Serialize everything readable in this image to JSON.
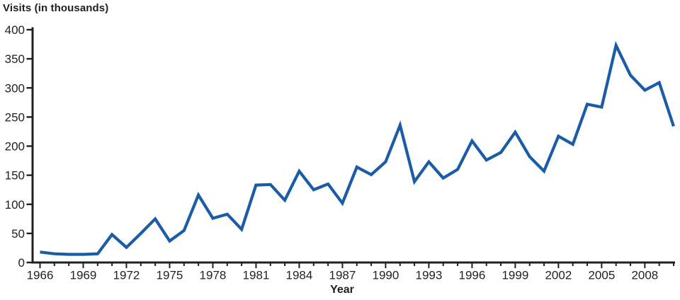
{
  "title": "Visits (in thousands)",
  "chart_data": {
    "type": "line",
    "title": "Visits (in thousands)",
    "xlabel": "Year",
    "ylabel": "Visits (in thousands)",
    "x": [
      1966,
      1967,
      1968,
      1969,
      1970,
      1971,
      1972,
      1973,
      1974,
      1975,
      1976,
      1977,
      1978,
      1979,
      1980,
      1981,
      1982,
      1983,
      1984,
      1985,
      1986,
      1987,
      1988,
      1989,
      1990,
      1991,
      1992,
      1993,
      1994,
      1995,
      1996,
      1997,
      1998,
      1999,
      2000,
      2001,
      2002,
      2003,
      2004,
      2005,
      2006,
      2007,
      2008,
      2009,
      2010
    ],
    "values": [
      18,
      15,
      14,
      14,
      15,
      48,
      26,
      50,
      75,
      37,
      55,
      116,
      76,
      83,
      57,
      133,
      134,
      107,
      157,
      125,
      135,
      102,
      164,
      151,
      173,
      236,
      139,
      173,
      145,
      160,
      209,
      176,
      189,
      224,
      182,
      157,
      217,
      203,
      272,
      267,
      373,
      322,
      296,
      309,
      234
    ],
    "ylim": [
      0,
      400
    ],
    "y_ticks": [
      0,
      50,
      100,
      150,
      200,
      250,
      300,
      350,
      400
    ],
    "x_tick_labels": [
      "1966",
      "1969",
      "1972",
      "1975",
      "1978",
      "1981",
      "1984",
      "1987",
      "1990",
      "1993",
      "1996",
      "1999",
      "2002",
      "2005",
      "2008"
    ],
    "x_label_every": 3,
    "grid": false,
    "legend_position": "none",
    "line_color": "#1a5ca6",
    "axis_color": "#231f20"
  }
}
